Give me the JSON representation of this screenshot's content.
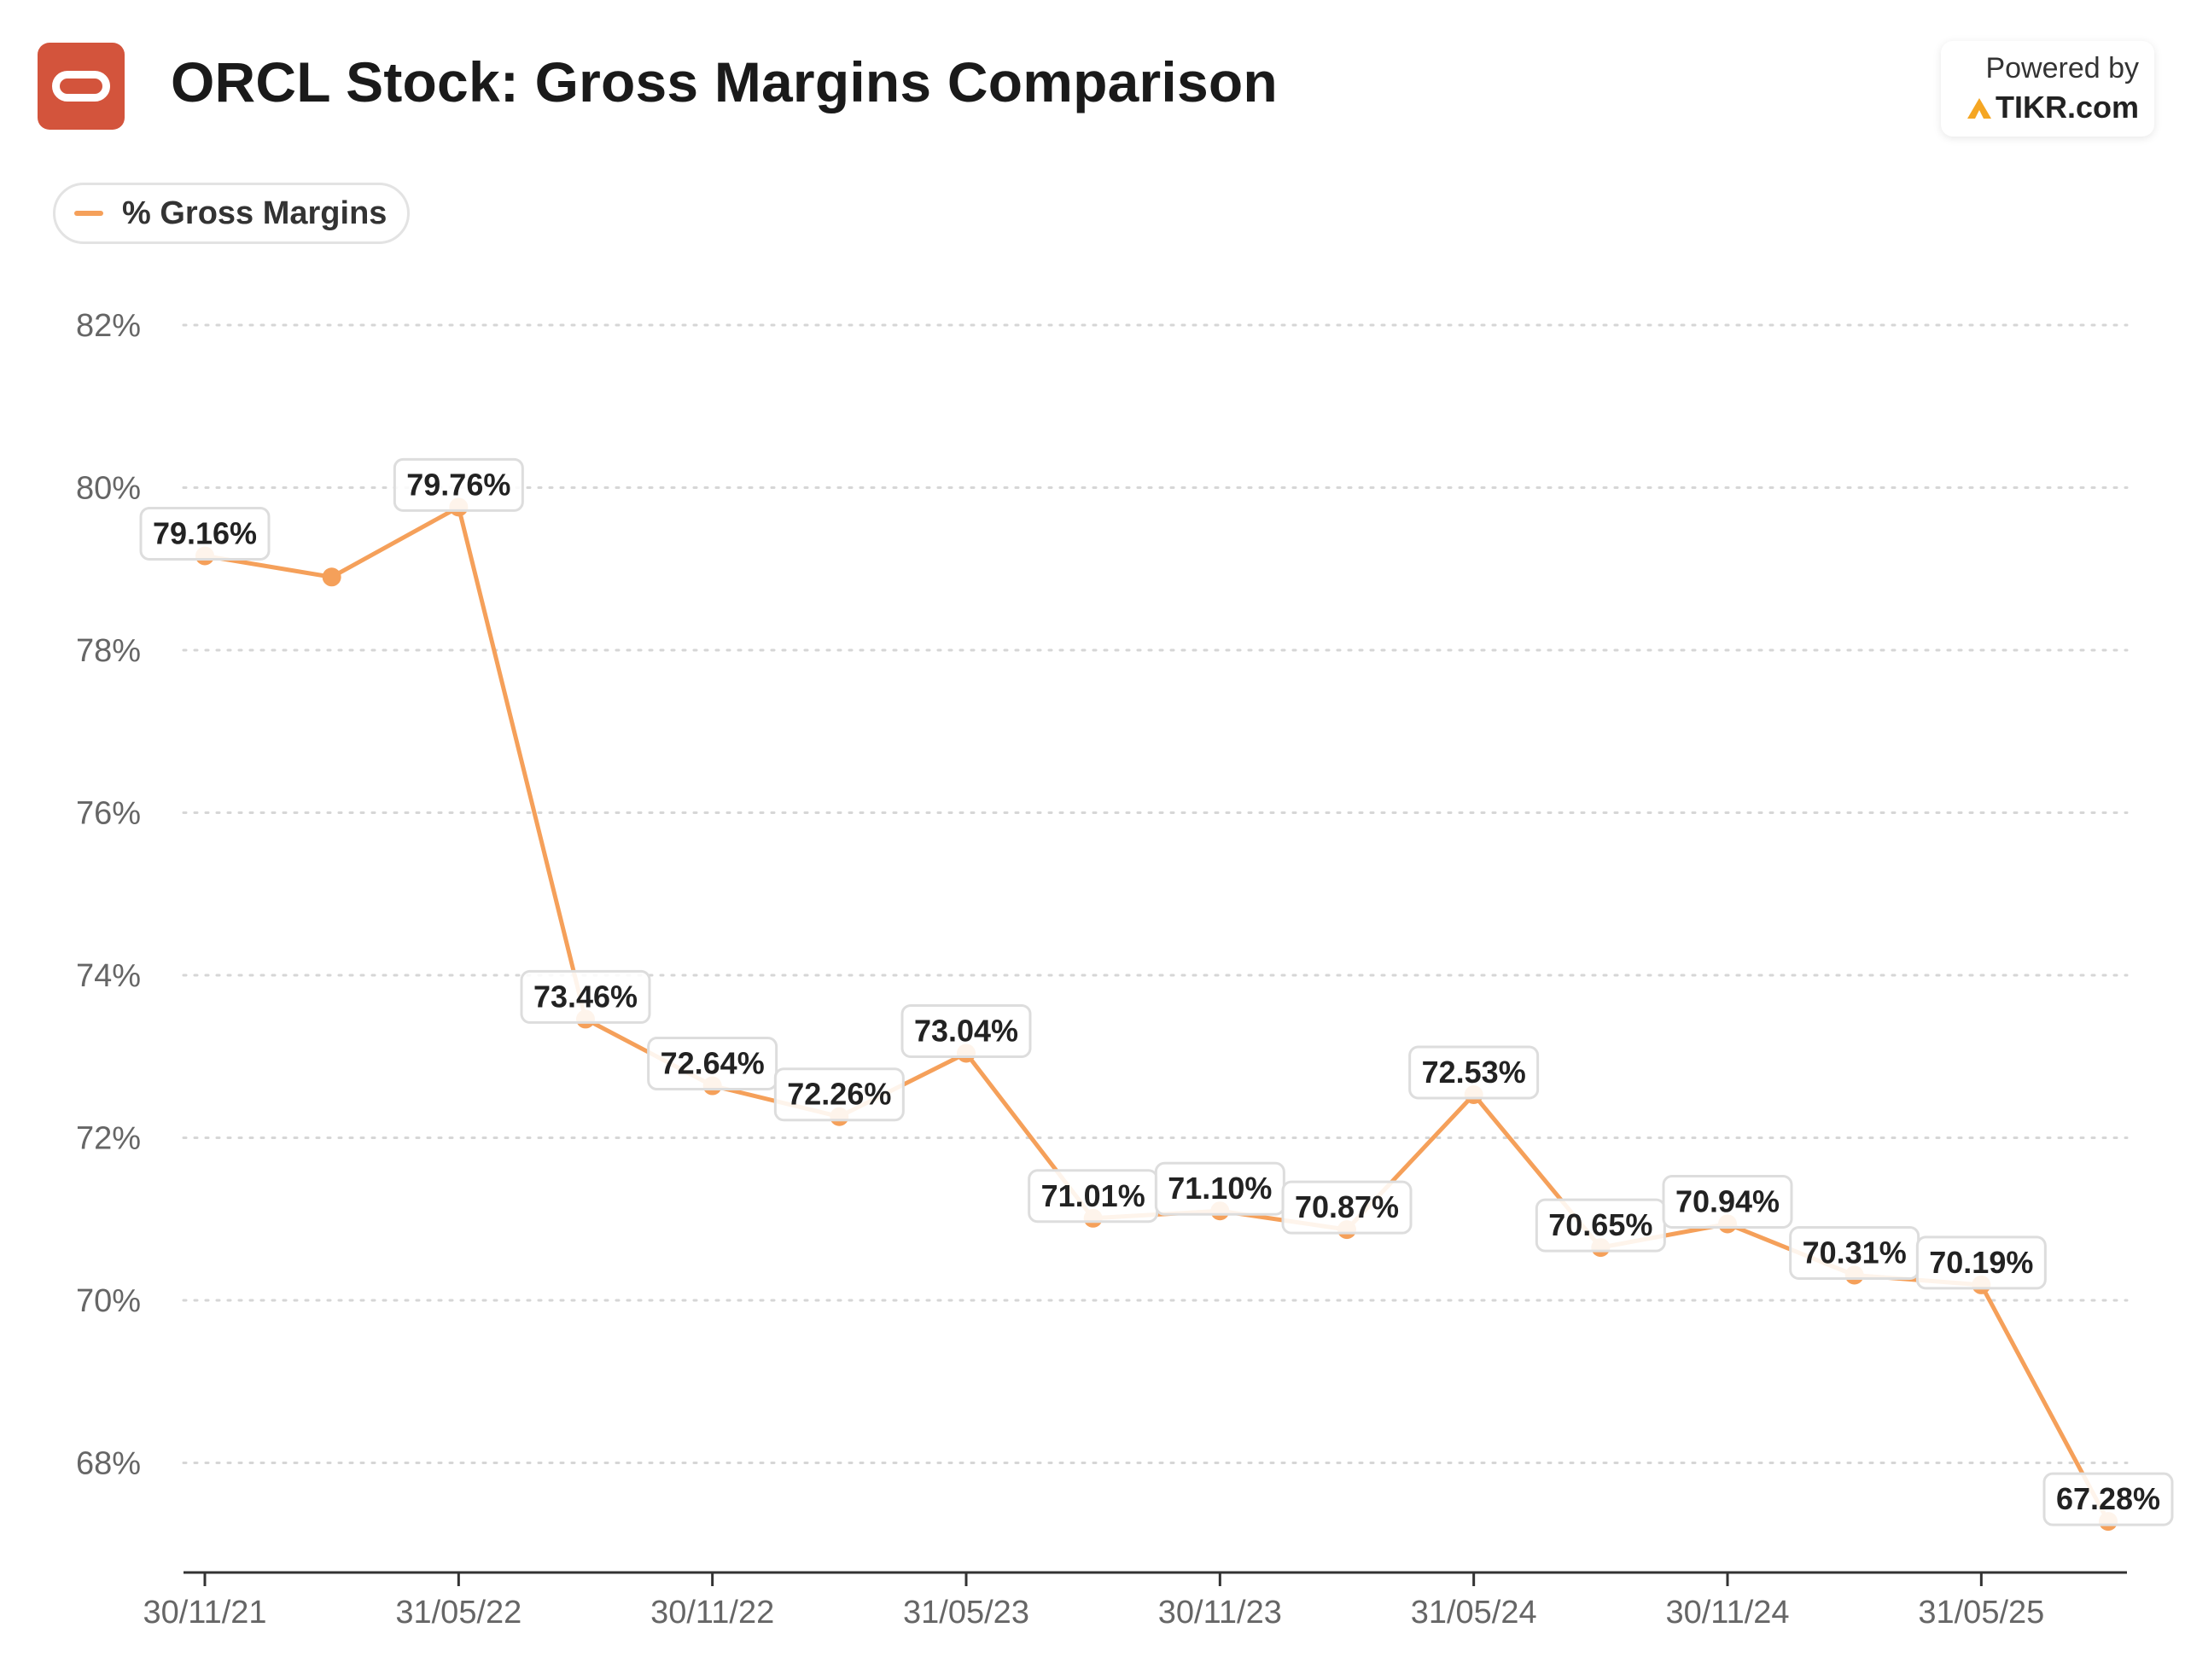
{
  "header": {
    "title": "ORCL Stock: Gross Margins Comparison",
    "powered_by": "Powered by",
    "brand": "TIKR.com"
  },
  "legend": {
    "label": "% Gross Margins"
  },
  "colors": {
    "line": "#f5a05a",
    "logo": "#d3543c",
    "brand_icon": "#f5a623"
  },
  "chart_data": {
    "type": "line",
    "title": "ORCL Stock: Gross Margins Comparison",
    "xlabel": "",
    "ylabel": "",
    "ylim": [
      67,
      82
    ],
    "y_ticks": [
      82,
      80,
      78,
      76,
      74,
      72,
      70,
      68
    ],
    "y_tick_labels": [
      "82%",
      "80%",
      "78%",
      "76%",
      "74%",
      "72%",
      "70%",
      "68%"
    ],
    "x_tick_labels": [
      "30/11/21",
      "31/05/22",
      "30/11/22",
      "31/05/23",
      "30/11/23",
      "31/05/24",
      "30/11/24",
      "31/05/25"
    ],
    "x_tick_point_index": [
      0,
      2,
      4,
      6,
      8,
      10,
      12,
      14
    ],
    "grid": true,
    "legend_position": "top-left",
    "series": [
      {
        "name": "% Gross Margins",
        "values": [
          79.16,
          78.9,
          79.76,
          73.46,
          72.64,
          72.26,
          73.04,
          71.01,
          71.1,
          70.87,
          72.53,
          70.65,
          70.94,
          70.31,
          70.19,
          67.28
        ],
        "labels": [
          "79.16%",
          "",
          "79.76%",
          "73.46%",
          "72.64%",
          "72.26%",
          "73.04%",
          "71.01%",
          "71.10%",
          "70.87%",
          "72.53%",
          "70.65%",
          "70.94%",
          "70.31%",
          "70.19%",
          "67.28%"
        ]
      }
    ]
  }
}
